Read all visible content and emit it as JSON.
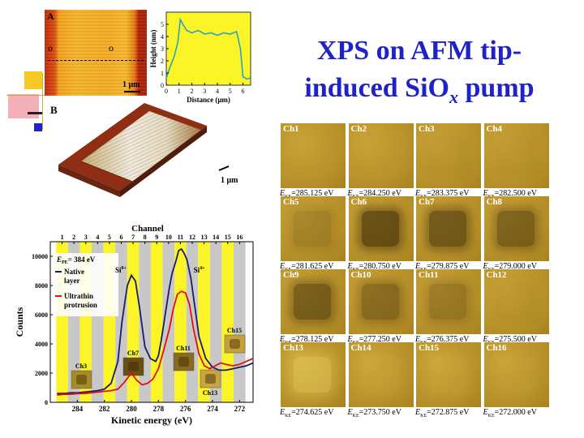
{
  "slide": {
    "title_line1": "XPS on AFM tip-",
    "title_line2_pre": "induced SiO",
    "title_line2_sub": "x",
    "title_line2_post": " pump"
  },
  "afm": {
    "panel_a_label": "A",
    "panel_b_label": "B",
    "scale_bar_a": "1 μm",
    "scale_bar_b": "1 μm",
    "marker_left": "o",
    "marker_right": "o"
  },
  "profile_chart": {
    "type": "line",
    "xlabel": "Distance (μm)",
    "ylabel": "Height (nm)",
    "xticks": [
      "0",
      "1",
      "2",
      "3",
      "4",
      "5",
      "6"
    ],
    "yticks": [
      "0",
      "1",
      "2",
      "3",
      "4",
      "5"
    ],
    "xlim": [
      0,
      6.6
    ],
    "ylim": [
      0,
      6
    ],
    "x": [
      0,
      0.3,
      0.6,
      0.9,
      1.1,
      1.3,
      1.6,
      2.0,
      2.5,
      3.0,
      3.5,
      4.0,
      4.5,
      5.0,
      5.5,
      5.8,
      6.0,
      6.3,
      6.6
    ],
    "y": [
      0.6,
      1.5,
      2.3,
      3.5,
      5.4,
      5.0,
      4.5,
      4.3,
      4.5,
      4.2,
      4.3,
      4.1,
      4.3,
      4.2,
      4.4,
      3.0,
      0.7,
      0.5,
      0.6
    ],
    "line_color": "#2aa3c4",
    "background": "#fbf527"
  },
  "chart_data": {
    "type": "line",
    "title": "Channel",
    "xlabel": "Kinetic energy (eV)",
    "ylabel": "Counts",
    "xlim": [
      286,
      271
    ],
    "ylim": [
      0,
      11000
    ],
    "xticks": [
      284,
      282,
      280,
      278,
      276,
      274,
      272
    ],
    "yticks": [
      0,
      2000,
      4000,
      6000,
      8000,
      10000
    ],
    "channel_ticks": [
      "1",
      "2",
      "3",
      "4",
      "5",
      "6",
      "7",
      "8",
      "9",
      "10",
      "11",
      "12",
      "13",
      "14",
      "15",
      "16"
    ],
    "channel_energies": [
      285.125,
      284.25,
      283.375,
      282.5,
      281.625,
      280.75,
      279.875,
      279.0,
      278.125,
      277.25,
      276.375,
      275.5,
      274.625,
      273.75,
      272.875,
      272.0
    ],
    "band_colors": [
      "#fbf527",
      "#c8c8c8"
    ],
    "annotation_epe": "E",
    "annotation_epe_sub": "PE",
    "annotation_epe_value": "= 384 eV",
    "peak_label_1": "Si",
    "peak_label_1_sup": "0+",
    "peak_label_2": "Si",
    "peak_label_2_sup": "4+",
    "inset_labels": [
      "Ch3",
      "Ch7",
      "Ch11",
      "Ch13",
      "Ch15"
    ],
    "series": [
      {
        "name": "Native layer",
        "color": "#1a1a6e",
        "x": [
          285.5,
          285.0,
          284.5,
          284.0,
          283.5,
          283.0,
          282.5,
          282.0,
          281.5,
          281.0,
          280.7,
          280.3,
          280.0,
          279.7,
          279.4,
          279.0,
          278.6,
          278.2,
          278.0,
          277.8,
          277.5,
          277.2,
          277.0,
          276.7,
          276.5,
          276.3,
          276.1,
          275.9,
          275.6,
          275.3,
          275.0,
          274.5,
          274.0,
          273.5,
          273.0,
          272.5,
          272.0,
          271.5,
          271.0
        ],
        "y": [
          600,
          600,
          650,
          650,
          700,
          750,
          800,
          900,
          1300,
          2800,
          5500,
          8000,
          8700,
          8300,
          6500,
          3800,
          3000,
          2800,
          3200,
          4200,
          6000,
          7800,
          8800,
          9700,
          10400,
          10500,
          10200,
          9800,
          8500,
          6500,
          4500,
          3000,
          2400,
          2200,
          2200,
          2300,
          2400,
          2500,
          2700
        ]
      },
      {
        "name": "Ultrathin protrusion",
        "color": "#e01010",
        "x": [
          285.5,
          285.0,
          284.5,
          284.0,
          283.5,
          283.0,
          282.5,
          282.0,
          281.5,
          281.0,
          280.5,
          280.0,
          279.6,
          279.2,
          278.8,
          278.4,
          278.0,
          277.6,
          277.2,
          276.9,
          276.6,
          276.3,
          276.0,
          275.7,
          275.4,
          275.0,
          274.6,
          274.2,
          273.8,
          273.4,
          273.0,
          272.5,
          272.0,
          271.5,
          271.0
        ],
        "y": [
          500,
          550,
          550,
          600,
          600,
          650,
          700,
          750,
          800,
          900,
          1400,
          2000,
          1500,
          1200,
          1300,
          1600,
          2300,
          3600,
          5000,
          6400,
          7400,
          7600,
          7500,
          6700,
          5000,
          3300,
          2500,
          2300,
          2500,
          2700,
          2600,
          2500,
          2600,
          2800,
          3000
        ]
      }
    ]
  },
  "channel_grid": {
    "cells": [
      {
        "label": "Ch1",
        "energy": "=285.125 eV",
        "dark": 0.0
      },
      {
        "label": "Ch2",
        "energy": "=284.250 eV",
        "dark": 0.0
      },
      {
        "label": "Ch3",
        "energy": "=283.375 eV",
        "dark": 0.05
      },
      {
        "label": "Ch4",
        "energy": "=282.500 eV",
        "dark": 0.05
      },
      {
        "label": "Ch5",
        "energy": "=281.625 eV",
        "dark": 0.25
      },
      {
        "label": "Ch6",
        "energy": "=280.750 eV",
        "dark": 0.8
      },
      {
        "label": "Ch7",
        "energy": "=279.875 eV",
        "dark": 0.7
      },
      {
        "label": "Ch8",
        "energy": "=279.000 eV",
        "dark": 0.6
      },
      {
        "label": "Ch9",
        "energy": "=278.125 eV",
        "dark": 0.65
      },
      {
        "label": "Ch10",
        "energy": "=277.250 eV",
        "dark": 0.5
      },
      {
        "label": "Ch11",
        "energy": "=276.375 eV",
        "dark": 0.35
      },
      {
        "label": "Ch12",
        "energy": "=275.500 eV",
        "dark": 0.05
      },
      {
        "label": "Ch13",
        "energy": "=274.625 eV",
        "dark": -0.4
      },
      {
        "label": "Ch14",
        "energy": "=273.750 eV",
        "dark": -0.1
      },
      {
        "label": "Ch15",
        "energy": "=272.875 eV",
        "dark": -0.1
      },
      {
        "label": "Ch16",
        "energy": "=272.000 eV",
        "dark": -0.05
      }
    ],
    "energy_prefix": "E",
    "energy_prefix_sub": "KE"
  }
}
